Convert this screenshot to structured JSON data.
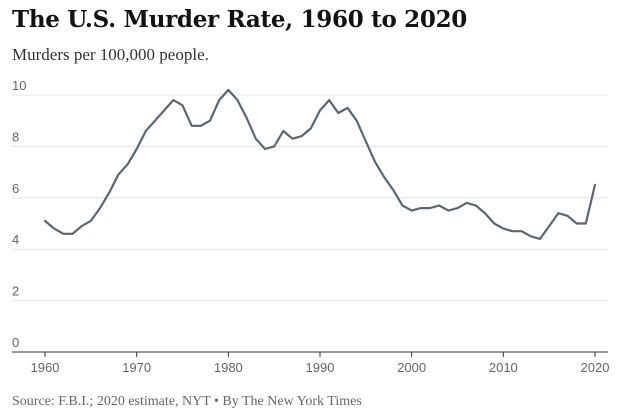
{
  "header": {
    "title": "The U.S. Murder Rate, 1960 to 2020",
    "subtitle": "Murders per 100,000 people."
  },
  "footer": {
    "source": "Source: F.B.I.; 2020 estimate, NYT • By The New York Times"
  },
  "colors": {
    "line": "#5c6670",
    "grid": "#e5e5e5",
    "axis": "#333333",
    "tick_text": "#666666"
  },
  "chart_data": {
    "type": "line",
    "title": "The U.S. Murder Rate, 1960 to 2020",
    "subtitle": "Murders per 100,000 people.",
    "xlabel": "",
    "ylabel": "",
    "xlim": [
      1960,
      2020
    ],
    "ylim": [
      0,
      10
    ],
    "x_ticks": [
      1960,
      1970,
      1980,
      1990,
      2000,
      2010,
      2020
    ],
    "y_ticks": [
      0,
      2,
      4,
      6,
      8,
      10
    ],
    "grid": "horizontal",
    "legend": "none",
    "series": [
      {
        "x": [
          1960,
          1961,
          1962,
          1963,
          1964,
          1965,
          1966,
          1967,
          1968,
          1969,
          1970,
          1971,
          1972,
          1973,
          1974,
          1975,
          1976,
          1977,
          1978,
          1979,
          1980,
          1981,
          1982,
          1983,
          1984,
          1985,
          1986,
          1987,
          1988,
          1989,
          1990,
          1991,
          1992,
          1993,
          1994,
          1995,
          1996,
          1997,
          1998,
          1999,
          2000,
          2001,
          2002,
          2003,
          2004,
          2005,
          2006,
          2007,
          2008,
          2009,
          2010,
          2011,
          2012,
          2013,
          2014,
          2015,
          2016,
          2017,
          2018,
          2019,
          2020
        ],
        "values": [
          5.1,
          4.8,
          4.6,
          4.6,
          4.9,
          5.1,
          5.6,
          6.2,
          6.9,
          7.3,
          7.9,
          8.6,
          9.0,
          9.4,
          9.8,
          9.6,
          8.8,
          8.8,
          9.0,
          9.8,
          10.2,
          9.8,
          9.1,
          8.3,
          7.9,
          8.0,
          8.6,
          8.3,
          8.4,
          8.7,
          9.4,
          9.8,
          9.3,
          9.5,
          9.0,
          8.2,
          7.4,
          6.8,
          6.3,
          5.7,
          5.5,
          5.6,
          5.6,
          5.7,
          5.5,
          5.6,
          5.8,
          5.7,
          5.4,
          5.0,
          4.8,
          4.7,
          4.7,
          4.5,
          4.4,
          4.9,
          5.4,
          5.3,
          5.0,
          5.0,
          6.5
        ]
      }
    ]
  }
}
